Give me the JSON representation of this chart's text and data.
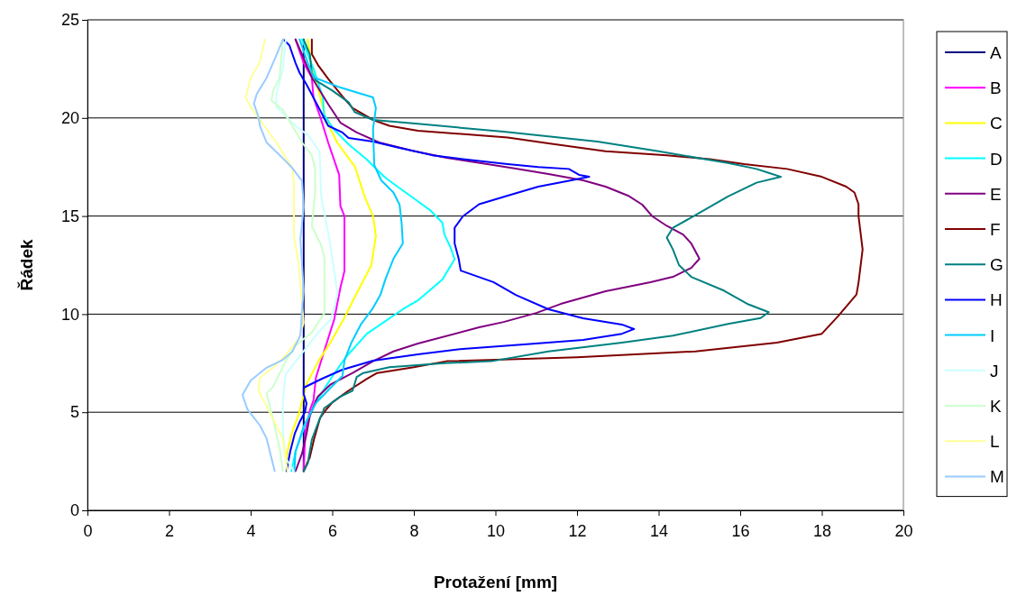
{
  "chart_data": {
    "type": "line",
    "xlabel": "Protažení [mm]",
    "ylabel": "Řádek",
    "xlim": [
      0,
      20
    ],
    "xticks": [
      0,
      2,
      4,
      6,
      8,
      10,
      12,
      14,
      16,
      18,
      20
    ],
    "ylim": [
      0,
      25
    ],
    "yticks": [
      0,
      5,
      10,
      15,
      20,
      25
    ],
    "grid": "y",
    "legend": "right",
    "marker": "none",
    "line_style": "solid",
    "series": [
      {
        "name": "A",
        "color": "#000080",
        "x": [
          5.3,
          5.3
        ],
        "values": [
          2,
          24
        ]
      },
      {
        "name": "B",
        "color": "#ff00ff",
        "x": [
          5.3,
          5.34,
          5.46,
          5.54,
          5.6,
          5.8,
          6.05,
          6.2,
          6.3,
          6.3,
          6.2,
          6.17,
          5.9,
          5.73,
          5.54,
          5.5,
          5.3,
          5.1
        ],
        "values": [
          2,
          4,
          5.15,
          5.6,
          6.76,
          8.1,
          9.74,
          11.35,
          12.2,
          15,
          15.5,
          17.1,
          18.75,
          19.9,
          21.05,
          22.06,
          22.8,
          24
        ]
      },
      {
        "name": "C",
        "color": "#ffff00",
        "x": [
          4.88,
          4.9,
          5.02,
          5.17,
          5.37,
          5.66,
          5.97,
          6.28,
          6.56,
          6.96,
          7.07,
          7.0,
          6.8,
          6.56,
          6.12,
          5.85,
          5.69,
          5.48,
          5.4
        ],
        "values": [
          2,
          3,
          4,
          4.83,
          6.43,
          7.6,
          8.6,
          9.74,
          10.9,
          12.5,
          14,
          15,
          15.95,
          17.5,
          18.75,
          19.9,
          21.2,
          22.8,
          24
        ]
      },
      {
        "name": "D",
        "color": "#00ffff",
        "x": [
          5.0,
          5.1,
          5.37,
          5.6,
          5.96,
          6.33,
          6.85,
          7.73,
          8.1,
          8.7,
          9.0,
          8.9,
          8.75,
          8.7,
          8.4,
          8.0,
          7.6,
          7.3,
          7.07,
          6.85,
          6.4,
          6.03,
          5.8,
          5.77,
          5.56,
          5.26
        ],
        "values": [
          2,
          3,
          4.55,
          5.5,
          6.7,
          7.8,
          9,
          10.25,
          10.7,
          11.76,
          12.8,
          13.4,
          14.06,
          14.66,
          15.3,
          15.9,
          16.5,
          16.96,
          17.42,
          17.88,
          18.66,
          19.44,
          20.17,
          21.05,
          22.4,
          24
        ]
      },
      {
        "name": "E",
        "color": "#800080",
        "x": [
          5.1,
          5.26,
          5.37,
          5.45,
          5.6,
          5.65,
          5.95,
          6.5,
          7.0,
          7.5,
          8.1,
          9.6,
          10.2,
          11.0,
          11.6,
          12.7,
          13.8,
          14.35,
          14.8,
          15.0,
          14.8,
          14.6,
          14.2,
          13.85,
          13.6,
          13.25,
          12.7,
          12.15,
          11.3,
          10.5,
          9.8,
          8.8,
          7.95,
          7.15,
          6.6,
          6.2,
          5.9,
          5.5,
          5.1
        ],
        "values": [
          2,
          2.9,
          3.9,
          4.8,
          5.6,
          5.8,
          6.4,
          7,
          7.6,
          8.1,
          8.5,
          9.33,
          9.6,
          10.06,
          10.52,
          11.17,
          11.63,
          11.9,
          12.36,
          12.82,
          13.6,
          14.06,
          14.5,
          14.98,
          15.58,
          16.04,
          16.5,
          16.82,
          17.14,
          17.42,
          17.65,
          17.97,
          18.34,
          18.75,
          19.26,
          19.76,
          20.7,
          22.06,
          24
        ]
      },
      {
        "name": "F",
        "color": "#800000",
        "x": [
          5.3,
          5.45,
          5.55,
          5.7,
          5.8,
          6.0,
          6.4,
          6.85,
          7.1,
          8.0,
          8.8,
          12.0,
          14.9,
          16.9,
          18.0,
          18.4,
          18.85,
          18.9,
          19.0,
          18.9,
          18.9,
          18.8,
          18.6,
          18.0,
          17.15,
          16.1,
          15.25,
          14.2,
          12.7,
          11.3,
          10.3,
          8.1,
          7.4,
          7.0,
          6.5,
          6.25,
          5.9,
          5.65,
          5.5,
          5.5
        ],
        "values": [
          2,
          2.7,
          3.6,
          4.7,
          5,
          5.5,
          6.1,
          6.7,
          7,
          7.3,
          7.6,
          7.8,
          8.1,
          8.55,
          9,
          9.9,
          11,
          11.6,
          13.3,
          15,
          15.6,
          16.2,
          16.5,
          17,
          17.4,
          17.65,
          17.9,
          18.1,
          18.3,
          18.7,
          19,
          19.35,
          19.6,
          19.9,
          20.5,
          21.1,
          22,
          22.7,
          23.25,
          24
        ]
      },
      {
        "name": "G",
        "color": "#008080",
        "x": [
          5.3,
          5.4,
          5.5,
          5.7,
          5.77,
          5.8,
          6.2,
          6.5,
          6.6,
          6.76,
          7.4,
          8.75,
          9.9,
          11.3,
          13.1,
          14.35,
          15.7,
          16.5,
          16.7,
          16.2,
          15.6,
          14.8,
          14.5,
          14.35,
          14.2,
          14.35,
          14.95,
          15.7,
          16.4,
          17.0,
          16.7,
          16.4,
          15.7,
          14.0,
          12.5,
          10.2,
          8.1,
          7.0,
          6.55,
          6.4,
          6.0,
          5.6,
          5.5,
          5.45,
          5.3
        ],
        "values": [
          2,
          2.4,
          3.6,
          4.7,
          5,
          5.2,
          5.8,
          6.1,
          6.8,
          7,
          7.3,
          7.5,
          7.6,
          8.1,
          8.55,
          8.9,
          9.5,
          9.8,
          10.1,
          10.5,
          11.2,
          11.9,
          12.5,
          13.3,
          13.9,
          14.4,
          15.1,
          16,
          16.7,
          17,
          17.2,
          17.4,
          17.7,
          18.3,
          18.8,
          19.3,
          19.7,
          19.9,
          20.3,
          20.8,
          21.4,
          21.9,
          22.3,
          23.25,
          24
        ]
      },
      {
        "name": "H",
        "color": "#0000ff",
        "x": [
          4.88,
          4.97,
          5.08,
          5.2,
          5.33,
          5.37,
          5.3,
          5.3,
          5.75,
          6.25,
          7.0,
          8.1,
          9.2,
          10.7,
          12.15,
          13.1,
          13.4,
          13.1,
          12.15,
          11.3,
          10.5,
          9.95,
          9.15,
          9.1,
          9.0,
          9.0,
          9.2,
          9.6,
          10.3,
          11.05,
          11.8,
          12.3,
          12.05,
          11.8,
          11.05,
          10.3,
          9.2,
          8.45,
          7.6,
          7.0,
          6.4,
          6.25,
          5.9,
          5.8,
          5.6,
          5.37,
          5.2,
          5.1,
          4.95,
          4.8
        ],
        "values": [
          2,
          3,
          3.9,
          4.5,
          5,
          5.45,
          5.93,
          6.25,
          6.71,
          7.17,
          7.63,
          7.95,
          8.23,
          8.46,
          8.69,
          9,
          9.24,
          9.47,
          9.79,
          10.25,
          10.98,
          11.63,
          12.22,
          12.82,
          13.6,
          14.4,
          14.98,
          15.6,
          16.04,
          16.5,
          16.8,
          17,
          17.1,
          17.4,
          17.5,
          17.65,
          17.9,
          18.1,
          18.5,
          18.8,
          18.98,
          19.26,
          19.6,
          20,
          20.8,
          21.7,
          22.3,
          22.8,
          23.7,
          24
        ]
      },
      {
        "name": "I",
        "color": "#00ccff",
        "x": [
          5.07,
          5.1,
          5.3,
          5.6,
          5.96,
          6.25,
          6.3,
          6.47,
          6.7,
          6.98,
          7.18,
          7.3,
          7.5,
          7.73,
          7.7,
          7.65,
          7.5,
          7.2,
          7.03,
          7.0,
          7.07,
          7.0,
          6.2,
          5.56,
          5.4,
          5.2
        ],
        "values": [
          2,
          3,
          4.27,
          5.47,
          6.25,
          6.85,
          7.63,
          8.55,
          9.47,
          10.25,
          10.98,
          11.76,
          12.82,
          13.6,
          14.66,
          15.58,
          16.2,
          16.82,
          17.6,
          19.44,
          20.5,
          21.05,
          21.55,
          22.06,
          22.8,
          24
        ]
      },
      {
        "name": "J",
        "color": "#ccffff",
        "x": [
          5.06,
          4.86,
          4.79,
          4.79,
          4.86,
          5.17,
          5.41,
          5.66,
          5.97,
          6.13,
          5.93,
          5.73,
          5.69,
          5.42,
          5.1,
          4.63,
          4.63,
          4.79,
          4.86
        ],
        "values": [
          2,
          2.67,
          4,
          5.62,
          6.94,
          7.77,
          8.4,
          9.07,
          9.74,
          11.04,
          13.83,
          15.97,
          18.26,
          19.1,
          19.6,
          20.56,
          21.2,
          22.5,
          24
        ]
      },
      {
        "name": "K",
        "color": "#ccffcc",
        "x": [
          4.79,
          4.71,
          4.55,
          4.39,
          4.55,
          4.86,
          5.1,
          5.5,
          5.81,
          5.81,
          5.73,
          5.5,
          5.58,
          5.58,
          5.5,
          5.26,
          5.02,
          4.79,
          4.51,
          4.55,
          4.71,
          4.79
        ],
        "values": [
          2,
          3.17,
          4.64,
          5.97,
          6.3,
          7.6,
          8.4,
          9.07,
          10.06,
          12.85,
          13.5,
          14.49,
          16.13,
          17.45,
          18.1,
          18.75,
          19.6,
          20.4,
          20.89,
          21.38,
          22.04,
          24
        ]
      },
      {
        "name": "L",
        "color": "#ffff99",
        "x": [
          4.9,
          4.79,
          4.47,
          4.19,
          4.23,
          4.55,
          4.86,
          5.18,
          5.3,
          5.26,
          5.18,
          5.06,
          5.06,
          5.02,
          4.63,
          4.23,
          4.0,
          3.88,
          4.0,
          4.23,
          4.35
        ],
        "values": [
          2,
          3.66,
          4.97,
          6.12,
          6.77,
          7.27,
          7.92,
          8.75,
          9.56,
          10.55,
          12.52,
          14,
          16.79,
          17.45,
          18.75,
          19.9,
          20.56,
          21.05,
          22.04,
          22.86,
          24
        ]
      },
      {
        "name": "M",
        "color": "#99ccff",
        "x": [
          4.59,
          4.51,
          4.39,
          4.23,
          3.92,
          3.8,
          4.0,
          4.39,
          4.79,
          5.02,
          5.22,
          5.26,
          5.3,
          5.22,
          5.3,
          5.26,
          5.02,
          4.79,
          4.39,
          4.23,
          4.19,
          4.08,
          4.15,
          4.39,
          4.63,
          4.79
        ],
        "values": [
          2,
          2.67,
          3.67,
          4.32,
          5.15,
          5.88,
          6.62,
          7.27,
          7.67,
          8.09,
          8.92,
          10.22,
          11.21,
          13.83,
          15.47,
          16.79,
          17.45,
          17.94,
          18.75,
          19.58,
          20.07,
          20.73,
          21.22,
          22.04,
          23.19,
          24
        ]
      }
    ]
  }
}
